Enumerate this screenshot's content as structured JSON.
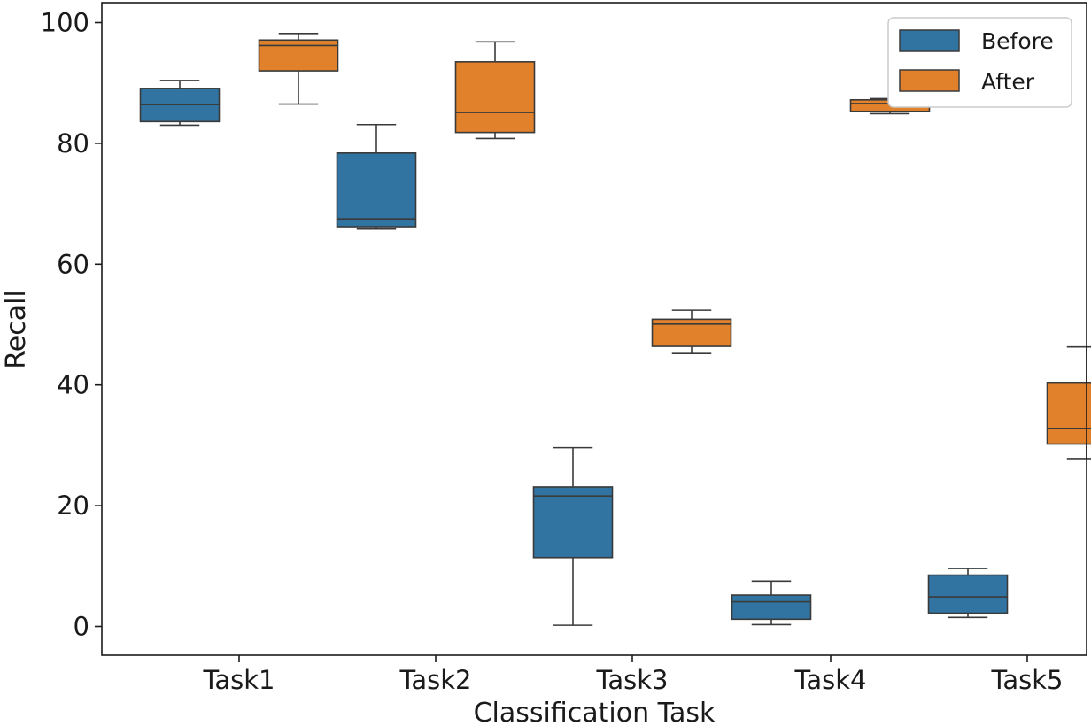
{
  "chart_data": {
    "type": "box",
    "xlabel": "Classification Task",
    "ylabel": "Recall",
    "ylim": [
      -5,
      103.5
    ],
    "yticks": [
      0,
      20,
      40,
      60,
      80,
      100
    ],
    "ytick_labels": [
      "0",
      "20",
      "40",
      "60",
      "80",
      "100"
    ],
    "categories": [
      "Task1",
      "Task2",
      "Task3",
      "Task4",
      "Task5"
    ],
    "legend_position": "top-right",
    "series": [
      {
        "name": "Before",
        "color": "#3274a1",
        "boxes": [
          {
            "whislo": 83.0,
            "q1": 83.6,
            "med": 86.4,
            "q3": 89.1,
            "whishi": 90.4
          },
          {
            "whislo": 65.8,
            "q1": 66.2,
            "med": 67.5,
            "q3": 78.4,
            "whishi": 83.1
          },
          {
            "whislo": 0.2,
            "q1": 11.4,
            "med": 21.6,
            "q3": 23.1,
            "whishi": 29.6
          },
          {
            "whislo": 0.3,
            "q1": 1.2,
            "med": 4.1,
            "q3": 5.2,
            "whishi": 7.5
          },
          {
            "whislo": 1.5,
            "q1": 2.2,
            "med": 4.9,
            "q3": 8.5,
            "whishi": 9.6
          }
        ]
      },
      {
        "name": "After",
        "color": "#e1812c",
        "boxes": [
          {
            "whislo": 86.5,
            "q1": 92.0,
            "med": 96.2,
            "q3": 97.1,
            "whishi": 98.2
          },
          {
            "whislo": 80.8,
            "q1": 81.8,
            "med": 85.1,
            "q3": 93.5,
            "whishi": 96.8
          },
          {
            "whislo": 45.2,
            "q1": 46.4,
            "med": 50.1,
            "q3": 50.9,
            "whishi": 52.4
          },
          {
            "whislo": 84.9,
            "q1": 85.3,
            "med": 86.6,
            "q3": 87.2,
            "whishi": 87.4
          },
          {
            "whislo": 27.8,
            "q1": 30.2,
            "med": 32.8,
            "q3": 40.3,
            "whishi": 46.3
          }
        ]
      }
    ]
  }
}
